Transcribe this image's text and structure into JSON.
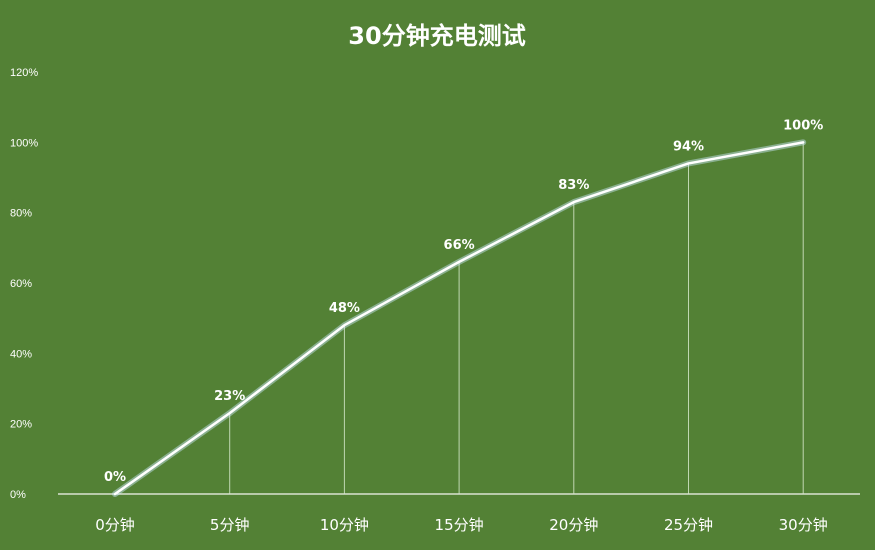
{
  "chart_data": {
    "type": "line",
    "title": "30分钟充电测试",
    "categories": [
      "0分钟",
      "5分钟",
      "10分钟",
      "15分钟",
      "20分钟",
      "25分钟",
      "30分钟"
    ],
    "series": [
      {
        "values": [
          0,
          23,
          48,
          66,
          83,
          94,
          100
        ]
      }
    ],
    "data_labels": [
      "0%",
      "23%",
      "48%",
      "66%",
      "83%",
      "94%",
      "100%"
    ],
    "y_ticks": [
      0,
      20,
      40,
      60,
      80,
      100,
      120
    ],
    "y_tick_labels": [
      "0%",
      "20%",
      "40%",
      "60%",
      "80%",
      "100%",
      "120%"
    ],
    "ylim": [
      0,
      120
    ],
    "grid": false,
    "legend": "none",
    "colors": {
      "background": "#538135",
      "line": "#ffffff",
      "glow": "#cfe9ff",
      "text": "#ffffff"
    }
  }
}
